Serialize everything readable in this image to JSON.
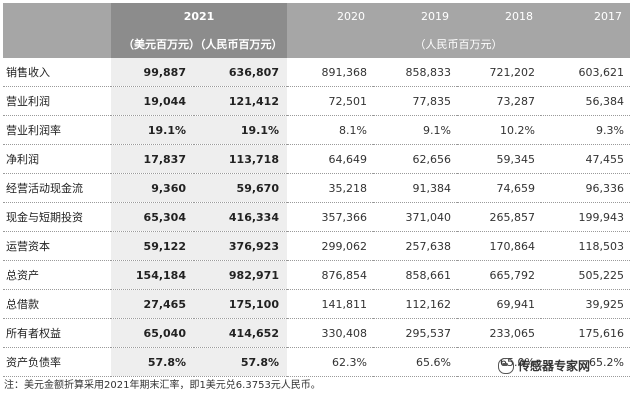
{
  "header": {
    "year_2021": "2021",
    "years": [
      "2020",
      "2019",
      "2018",
      "2017"
    ],
    "unit_2021": "（美元百万元）（人民币百万元）",
    "unit_rmb": "（人民币百万元）"
  },
  "rows": [
    {
      "label": "销售收入",
      "usd": "99,887",
      "rmb": "636,807",
      "y2020": "891,368",
      "y2019": "858,833",
      "y2018": "721,202",
      "y2017": "603,621"
    },
    {
      "label": "营业利润",
      "usd": "19,044",
      "rmb": "121,412",
      "y2020": "72,501",
      "y2019": "77,835",
      "y2018": "73,287",
      "y2017": "56,384"
    },
    {
      "label": "营业利润率",
      "usd": "19.1%",
      "rmb": "19.1%",
      "y2020": "8.1%",
      "y2019": "9.1%",
      "y2018": "10.2%",
      "y2017": "9.3%"
    },
    {
      "label": "净利润",
      "usd": "17,837",
      "rmb": "113,718",
      "y2020": "64,649",
      "y2019": "62,656",
      "y2018": "59,345",
      "y2017": "47,455"
    },
    {
      "label": "经营活动现金流",
      "usd": "9,360",
      "rmb": "59,670",
      "y2020": "35,218",
      "y2019": "91,384",
      "y2018": "74,659",
      "y2017": "96,336"
    },
    {
      "label": "现金与短期投资",
      "usd": "65,304",
      "rmb": "416,334",
      "y2020": "357,366",
      "y2019": "371,040",
      "y2018": "265,857",
      "y2017": "199,943"
    },
    {
      "label": "运营资本",
      "usd": "59,122",
      "rmb": "376,923",
      "y2020": "299,062",
      "y2019": "257,638",
      "y2018": "170,864",
      "y2017": "118,503"
    },
    {
      "label": "总资产",
      "usd": "154,184",
      "rmb": "982,971",
      "y2020": "876,854",
      "y2019": "858,661",
      "y2018": "665,792",
      "y2017": "505,225"
    },
    {
      "label": "总借款",
      "usd": "27,465",
      "rmb": "175,100",
      "y2020": "141,811",
      "y2019": "112,162",
      "y2018": "69,941",
      "y2017": "39,925"
    },
    {
      "label": "所有者权益",
      "usd": "65,040",
      "rmb": "414,652",
      "y2020": "330,408",
      "y2019": "295,537",
      "y2018": "233,065",
      "y2017": "175,616"
    },
    {
      "label": "资产负债率",
      "usd": "57.8%",
      "rmb": "57.8%",
      "y2020": "62.3%",
      "y2019": "65.6%",
      "y2018": "65.0%",
      "y2017": "65.2%"
    }
  ],
  "note": "注：美元金额折算采用2021年期末汇率，即1美元兑6.3753元人民币。",
  "watermark": "传感器专家网"
}
